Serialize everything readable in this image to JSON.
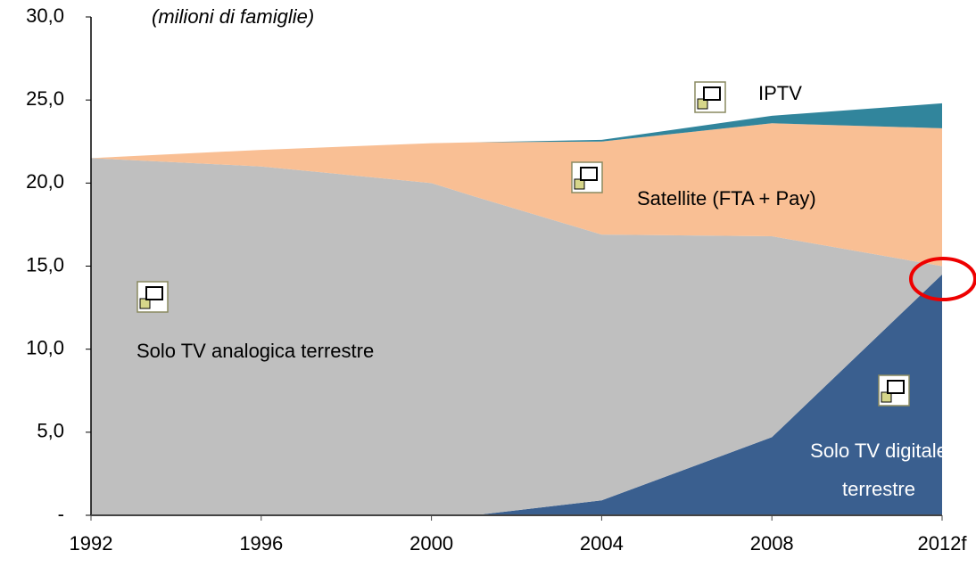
{
  "chart_data": {
    "type": "stacked_area",
    "title": "(milioni di famiglie)",
    "x": [
      1992,
      1996,
      2000,
      2001,
      2004,
      2008,
      2012
    ],
    "xlim": [
      1992,
      2012
    ],
    "xticks": [
      1992,
      1996,
      2000,
      2004,
      2008,
      {
        "value": 2012,
        "label": "2012f"
      }
    ],
    "ylim": [
      0,
      30
    ],
    "yticks": [
      {
        "value": 0,
        "label": "-"
      },
      {
        "value": 5,
        "label": "5,0"
      },
      {
        "value": 10,
        "label": "10,0"
      },
      {
        "value": 15,
        "label": "15,0"
      },
      {
        "value": 20,
        "label": "20,0"
      },
      {
        "value": 25,
        "label": "25,0"
      },
      {
        "value": 30,
        "label": "30,0"
      }
    ],
    "series": [
      {
        "name": "Solo TV digitale terrestre",
        "color": "#3a5f8f",
        "values": [
          0,
          0,
          0,
          0,
          0.9,
          4.7,
          14.5
        ]
      },
      {
        "name": "Solo TV analogica terrestre",
        "color": "#bfbfbf",
        "values": [
          21.5,
          21.0,
          20.0,
          19.2,
          16.0,
          12.1,
          0.5
        ]
      },
      {
        "name": "Satellite (FTA + Pay)",
        "color": "#f9bf94",
        "values": [
          0,
          1.0,
          2.4,
          3.25,
          5.6,
          6.8,
          8.3
        ]
      },
      {
        "name": "IPTV",
        "color": "#31859c",
        "values": [
          0,
          0,
          0,
          0,
          0.1,
          0.45,
          1.5
        ]
      }
    ]
  }
}
